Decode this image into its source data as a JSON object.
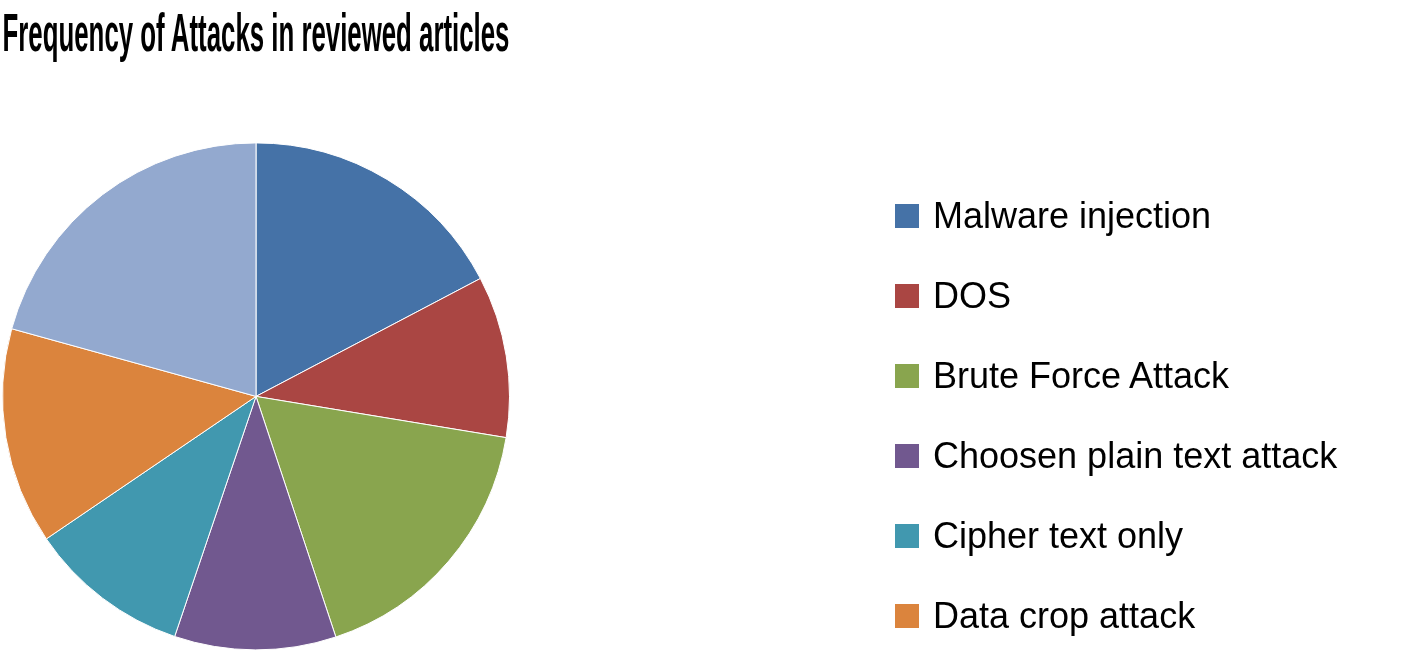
{
  "chart_data": {
    "type": "pie",
    "title": "Frequency of Attacks in reviewed articles",
    "categories": [
      "Malware injection",
      "DOS",
      "Brute Force Attack",
      "Choosen plain text attack",
      "Cipher text only",
      "Data crop attack",
      null
    ],
    "values": [
      17.3,
      10.3,
      17.3,
      10.3,
      10.3,
      13.8,
      20.7
    ],
    "colors": [
      "#4572a7",
      "#aa4643",
      "#89a54e",
      "#71588f",
      "#4198af",
      "#db843d",
      "#93a9cf"
    ],
    "legend": "right"
  }
}
